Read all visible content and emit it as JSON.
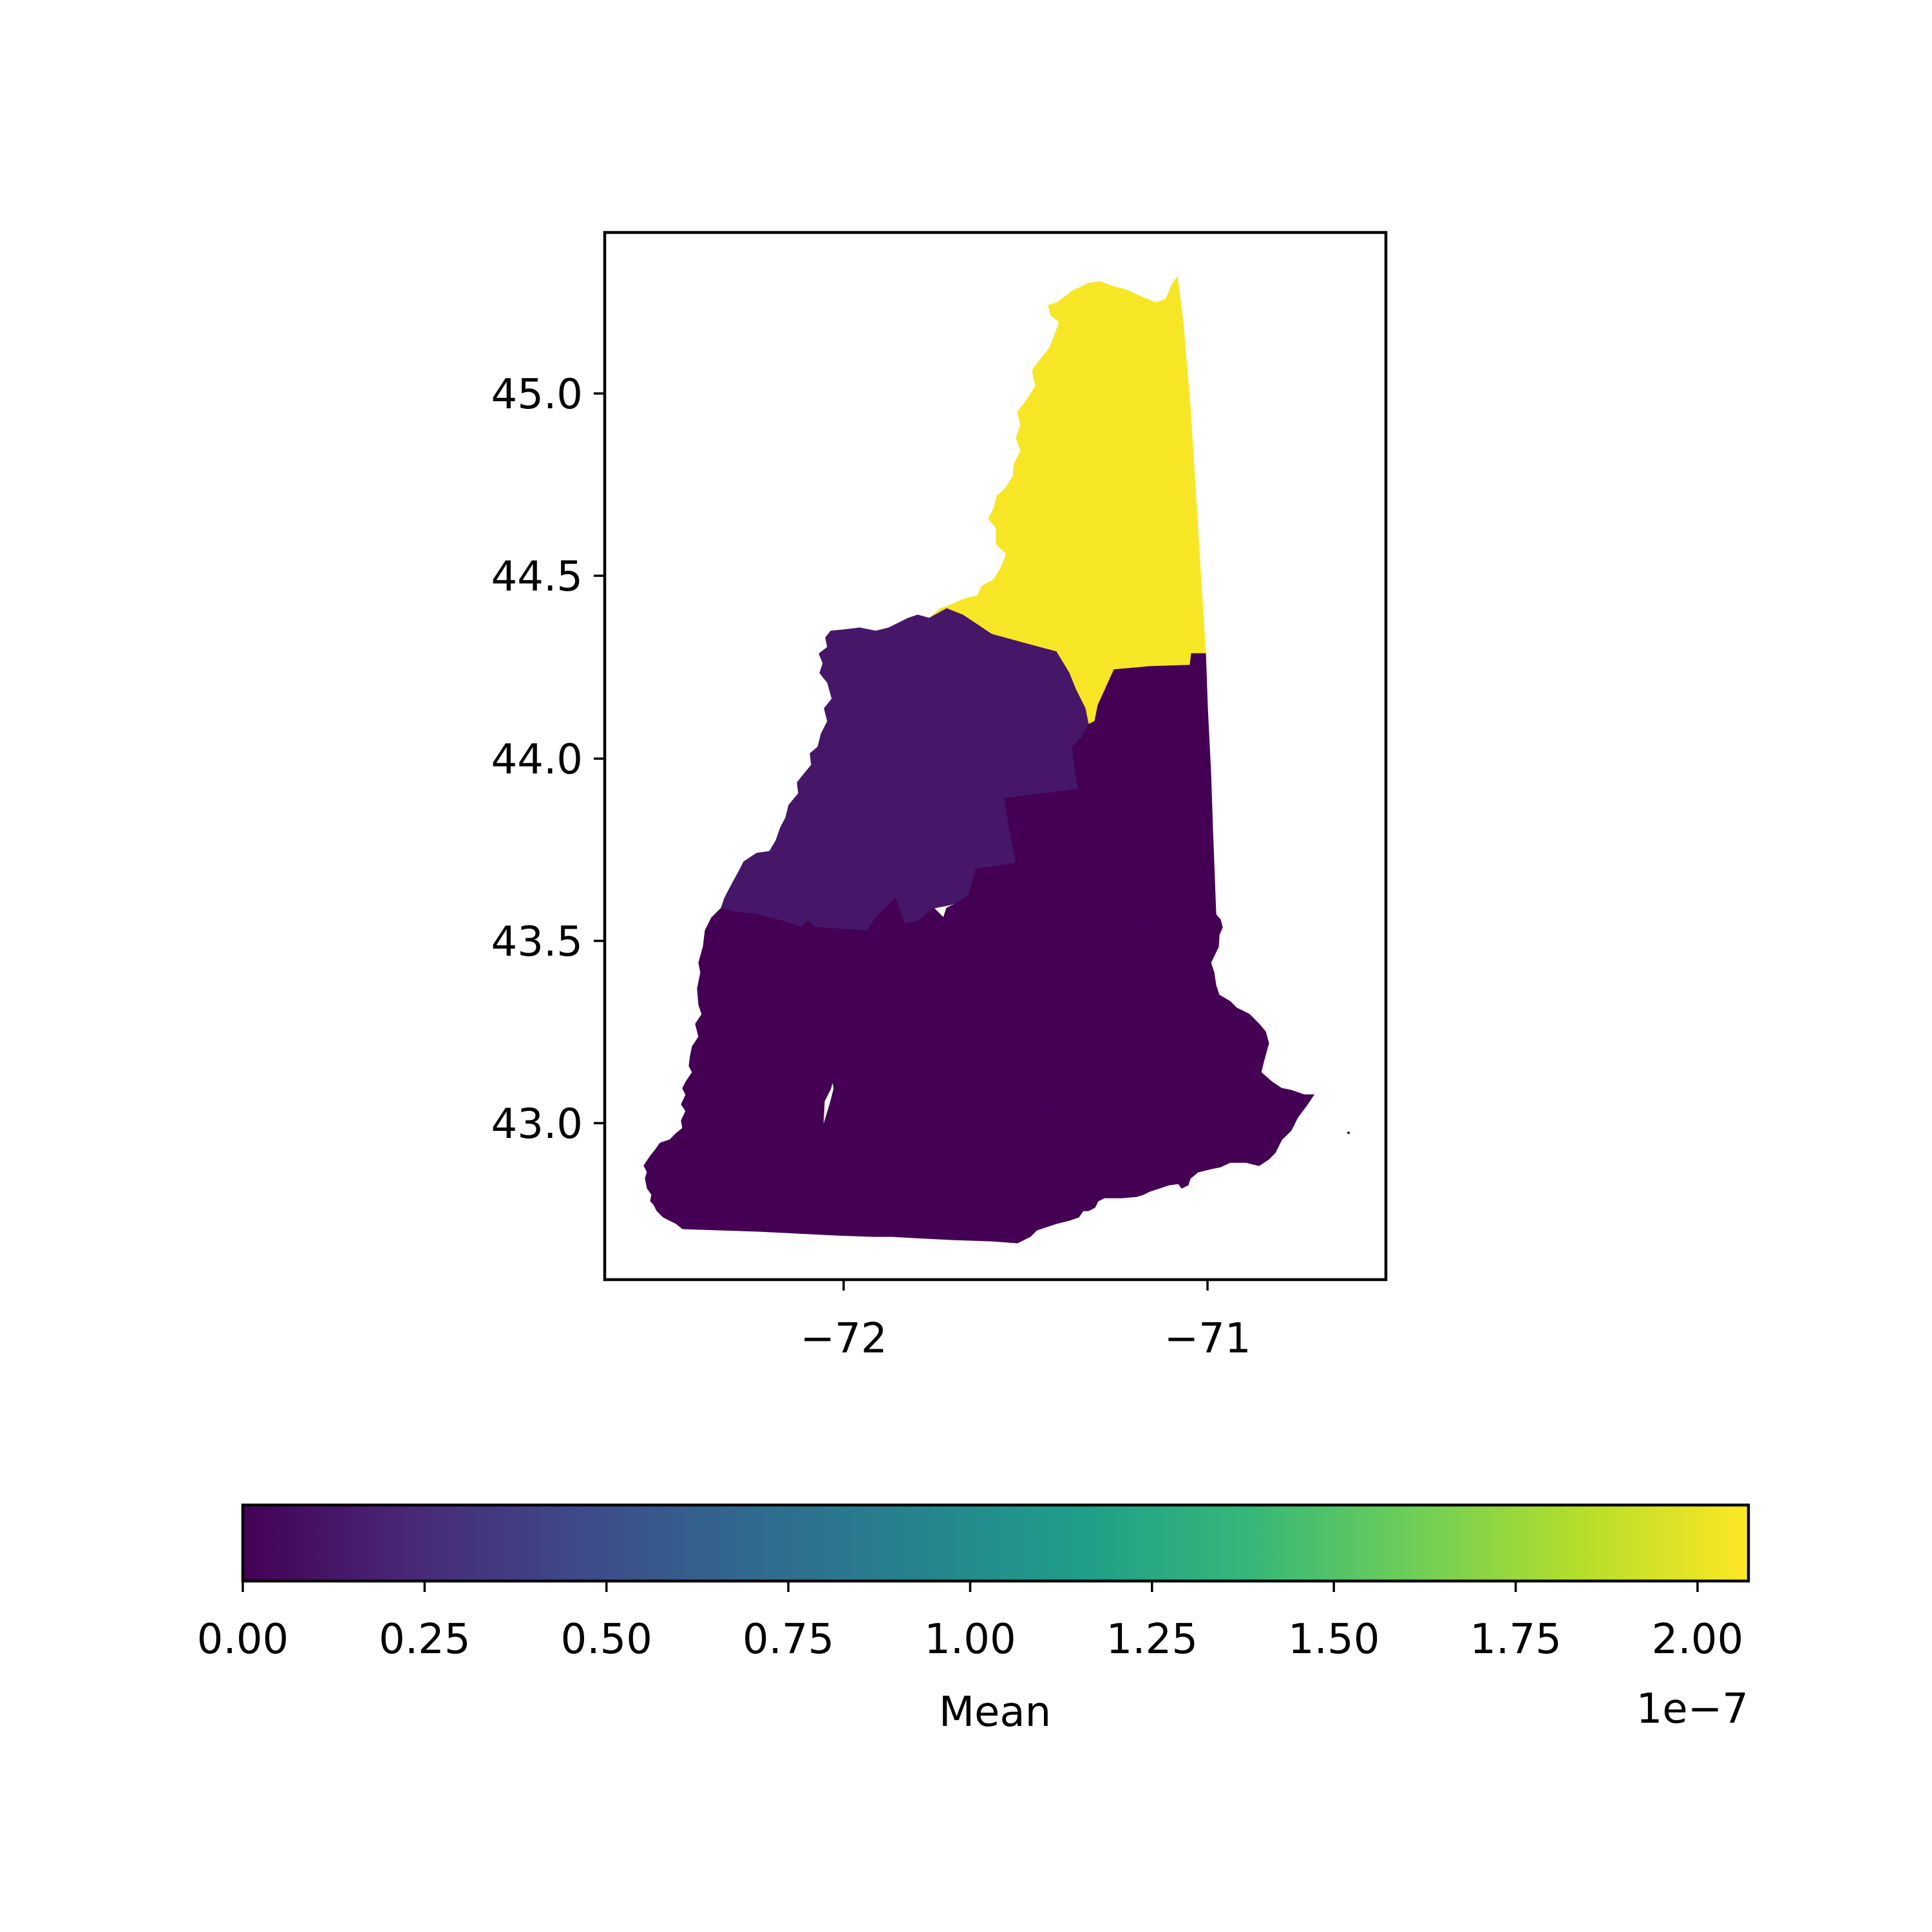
{
  "map": {
    "x_ticks": [
      "−72",
      "−71"
    ],
    "y_ticks": [
      "43.0",
      "43.5",
      "44.0",
      "44.5",
      "45.0"
    ],
    "counties": [
      {
        "value": 2.05e-07
      },
      {
        "value": 1.3e-08
      },
      {
        "value": 0
      },
      {
        "value": 0
      },
      {
        "value": 0
      },
      {
        "value": 0
      },
      {
        "value": 0
      },
      {
        "value": 0
      },
      {
        "value": 0
      },
      {
        "value": 0
      }
    ]
  },
  "colorbar": {
    "label": "Mean",
    "offset_text": "1e−7",
    "tick_labels": [
      "0.00",
      "0.25",
      "0.50",
      "0.75",
      "1.00",
      "1.25",
      "1.50",
      "1.75",
      "2.00"
    ],
    "min": 0,
    "max": 2.07,
    "colormap": "viridis",
    "colors": [
      "#440154",
      "#482878",
      "#3e4989",
      "#31688e",
      "#26828e",
      "#1f9e89",
      "#35b779",
      "#6ece58",
      "#b5de2b",
      "#fde725"
    ]
  }
}
